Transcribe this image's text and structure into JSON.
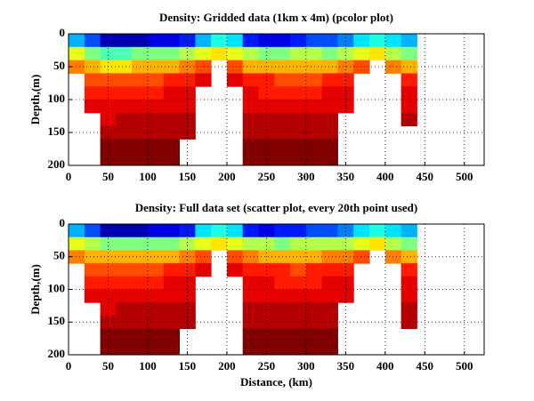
{
  "chart_data": [
    {
      "type": "heatmap",
      "title": "Density: Gridded data (1km x 4m) (pcolor plot)",
      "ylabel": "Depth,(m)",
      "colormap": "jet",
      "grid": true,
      "yreverse": true,
      "xlim": [
        0,
        525
      ],
      "ylim": [
        0,
        200
      ],
      "xticks": [
        0,
        50,
        100,
        150,
        200,
        250,
        300,
        350,
        400,
        450,
        500
      ],
      "yticks": [
        0,
        50,
        100,
        150,
        200
      ],
      "x_edges": [
        0,
        20,
        40,
        60,
        80,
        100,
        120,
        140,
        160,
        180,
        200,
        220,
        240,
        260,
        280,
        300,
        320,
        340,
        360,
        380,
        400,
        420,
        440
      ],
      "y_edges": [
        0,
        20,
        40,
        60,
        80,
        100,
        120,
        140,
        160,
        180,
        200
      ],
      "values": [
        [
          0.3,
          0.2,
          0.05,
          0.05,
          0.05,
          0.1,
          0.1,
          0.15,
          0.3,
          0.4,
          0.35,
          0.15,
          0.1,
          0.1,
          0.15,
          0.2,
          0.2,
          0.25,
          0.35,
          0.4,
          0.35,
          0.3
        ],
        [
          0.6,
          0.5,
          0.45,
          0.45,
          0.5,
          0.5,
          0.5,
          0.55,
          0.6,
          0.65,
          0.6,
          0.55,
          0.5,
          0.5,
          0.55,
          0.55,
          0.5,
          0.55,
          0.6,
          0.65,
          0.55,
          0.5
        ],
        [
          0.75,
          0.7,
          0.65,
          0.65,
          0.7,
          0.7,
          0.7,
          0.75,
          0.8,
          null,
          0.8,
          0.7,
          0.7,
          0.7,
          0.7,
          0.7,
          0.7,
          0.75,
          0.8,
          null,
          0.75,
          0.7
        ],
        [
          null,
          0.8,
          0.8,
          0.8,
          0.8,
          0.8,
          0.85,
          0.85,
          0.9,
          null,
          0.9,
          0.85,
          0.85,
          0.8,
          0.8,
          0.8,
          0.85,
          0.85,
          null,
          null,
          null,
          0.85
        ],
        [
          null,
          0.85,
          0.85,
          0.85,
          0.85,
          0.85,
          0.9,
          0.9,
          null,
          null,
          null,
          0.9,
          0.85,
          0.85,
          0.85,
          0.85,
          0.9,
          0.9,
          null,
          null,
          null,
          0.9
        ],
        [
          null,
          0.9,
          0.9,
          0.9,
          0.9,
          0.9,
          0.9,
          0.9,
          null,
          null,
          null,
          0.9,
          0.9,
          0.9,
          0.9,
          0.9,
          0.9,
          0.9,
          null,
          null,
          null,
          0.9
        ],
        [
          null,
          null,
          0.9,
          0.95,
          0.95,
          0.95,
          0.95,
          0.95,
          null,
          null,
          null,
          0.95,
          0.95,
          0.95,
          0.95,
          0.95,
          0.95,
          null,
          null,
          null,
          null,
          0.95
        ],
        [
          null,
          null,
          0.95,
          0.95,
          0.95,
          0.95,
          0.95,
          0.95,
          null,
          null,
          null,
          0.95,
          0.95,
          0.95,
          0.95,
          0.95,
          0.95,
          null,
          null,
          null,
          null,
          null
        ],
        [
          null,
          null,
          1,
          1,
          1,
          1,
          1,
          null,
          null,
          null,
          null,
          1,
          1,
          1,
          1,
          1,
          1,
          null,
          null,
          null,
          null,
          null
        ],
        [
          null,
          null,
          1,
          1,
          1,
          1,
          1,
          null,
          null,
          null,
          null,
          1,
          1,
          1,
          1,
          1,
          1,
          null,
          null,
          null,
          null,
          null
        ]
      ]
    },
    {
      "type": "heatmap",
      "title": "Density: Full data set (scatter plot, every 20th point used)",
      "ylabel": "Depth,(m)",
      "xlabel": "Distance, (km)",
      "colormap": "jet",
      "grid": true,
      "yreverse": true,
      "xlim": [
        0,
        525
      ],
      "ylim": [
        0,
        200
      ],
      "xticks": [
        0,
        50,
        100,
        150,
        200,
        250,
        300,
        350,
        400,
        450,
        500
      ],
      "yticks": [
        0,
        50,
        100,
        150,
        200
      ],
      "x_edges": [
        0,
        20,
        40,
        60,
        80,
        100,
        120,
        140,
        160,
        180,
        200,
        220,
        240,
        260,
        280,
        300,
        320,
        340,
        360,
        380,
        400,
        420,
        440
      ],
      "y_edges": [
        0,
        20,
        40,
        60,
        80,
        100,
        120,
        140,
        160,
        180,
        200
      ],
      "values": [
        [
          0.3,
          0.2,
          0.05,
          0.05,
          0.05,
          0.1,
          0.1,
          0.15,
          0.35,
          0.4,
          0.35,
          0.15,
          0.1,
          0.15,
          0.15,
          0.2,
          0.2,
          0.25,
          0.35,
          0.4,
          0.35,
          0.3
        ],
        [
          0.6,
          0.55,
          0.5,
          0.5,
          0.5,
          0.5,
          0.5,
          0.55,
          0.6,
          0.65,
          0.6,
          0.55,
          0.55,
          0.5,
          0.55,
          0.55,
          0.55,
          0.55,
          0.6,
          0.65,
          0.55,
          0.5
        ],
        [
          0.75,
          0.7,
          0.7,
          0.7,
          0.7,
          0.7,
          0.7,
          0.75,
          0.8,
          null,
          0.8,
          0.75,
          0.7,
          0.7,
          0.7,
          0.7,
          0.75,
          0.75,
          0.8,
          null,
          0.75,
          0.7
        ],
        [
          null,
          0.8,
          0.8,
          0.8,
          0.8,
          0.8,
          0.85,
          0.85,
          0.9,
          null,
          0.9,
          0.85,
          0.85,
          0.85,
          0.8,
          0.85,
          0.85,
          0.85,
          null,
          null,
          null,
          0.85
        ],
        [
          null,
          0.85,
          0.85,
          0.85,
          0.85,
          0.85,
          0.9,
          0.9,
          null,
          null,
          null,
          0.9,
          0.9,
          0.85,
          0.85,
          0.85,
          0.9,
          0.9,
          null,
          null,
          null,
          0.9
        ],
        [
          null,
          0.9,
          0.9,
          0.9,
          0.9,
          0.9,
          0.9,
          0.9,
          null,
          null,
          null,
          0.9,
          0.9,
          0.9,
          0.9,
          0.9,
          0.9,
          0.9,
          null,
          null,
          null,
          0.9
        ],
        [
          null,
          null,
          0.9,
          0.95,
          0.95,
          0.95,
          0.95,
          0.95,
          null,
          null,
          null,
          0.95,
          0.95,
          0.95,
          0.95,
          0.95,
          0.95,
          null,
          null,
          null,
          null,
          0.95
        ],
        [
          null,
          null,
          0.95,
          0.95,
          0.95,
          0.95,
          0.95,
          0.95,
          null,
          null,
          null,
          0.95,
          0.95,
          0.95,
          0.95,
          0.95,
          0.95,
          null,
          null,
          null,
          null,
          0.95
        ],
        [
          null,
          null,
          1,
          1,
          1,
          1,
          1,
          null,
          null,
          null,
          null,
          1,
          1,
          1,
          1,
          1,
          1,
          null,
          null,
          null,
          null,
          null
        ],
        [
          null,
          null,
          1,
          1,
          1,
          1,
          1,
          null,
          null,
          null,
          null,
          1,
          1,
          1,
          1,
          1,
          1,
          null,
          null,
          null,
          null,
          null
        ]
      ]
    }
  ]
}
